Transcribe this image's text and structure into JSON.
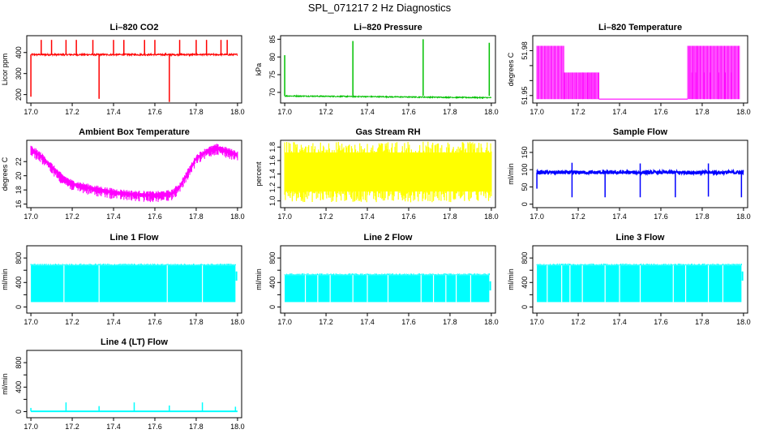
{
  "figure_title": "SPL_071217  2 Hz Diagnostics",
  "colors": {
    "co2": "#ff0000",
    "pressure": "#00c000",
    "magenta": "#ff00ff",
    "yellow": "#ffff00",
    "blue": "#0000ff",
    "cyan": "#00ffff",
    "axis": "#000000"
  },
  "chart_data": [
    {
      "id": "co2",
      "type": "line",
      "title": "Li–820 CO2",
      "xlabel": "",
      "ylabel": "Licor ppm",
      "color": "#ff0000",
      "xlim": [
        16.98,
        18.02
      ],
      "ylim": [
        160,
        480
      ],
      "xticks": [
        17.0,
        17.2,
        17.4,
        17.6,
        17.8,
        18.0
      ],
      "xtick_labels": [
        "17.0",
        "17.2",
        "17.4",
        "17.6",
        "17.8",
        "18.0"
      ],
      "yticks": [
        200,
        300,
        400
      ],
      "ytick_labels": [
        "200",
        "300",
        "400"
      ],
      "series": [
        {
          "name": "CO2",
          "baseline": 390,
          "noise": 4,
          "spikes": [
            [
              17.0,
              190
            ],
            [
              17.05,
              460
            ],
            [
              17.1,
              460
            ],
            [
              17.17,
              460
            ],
            [
              17.22,
              460
            ],
            [
              17.3,
              460
            ],
            [
              17.33,
              180
            ],
            [
              17.4,
              460
            ],
            [
              17.45,
              460
            ],
            [
              17.55,
              460
            ],
            [
              17.6,
              460
            ],
            [
              17.67,
              165
            ],
            [
              17.72,
              460
            ],
            [
              17.8,
              460
            ],
            [
              17.85,
              460
            ],
            [
              17.92,
              460
            ],
            [
              17.95,
              460
            ]
          ]
        }
      ]
    },
    {
      "id": "pressure",
      "type": "line",
      "title": "Li–820 Pressure",
      "xlabel": "",
      "ylabel": "kPa",
      "color": "#00c000",
      "xlim": [
        16.98,
        18.02
      ],
      "ylim": [
        67,
        86
      ],
      "xticks": [
        17.0,
        17.2,
        17.4,
        17.6,
        17.8,
        18.0
      ],
      "xtick_labels": [
        "17.0",
        "17.2",
        "17.4",
        "17.6",
        "17.8",
        "18.0"
      ],
      "yticks": [
        70,
        75,
        80,
        85
      ],
      "ytick_labels": [
        "70",
        "75",
        "80",
        "85"
      ],
      "series": [
        {
          "name": "Pressure",
          "start": 69.0,
          "end": 68.5,
          "noise": 0.15,
          "spikes": [
            [
              17.0,
              80.5
            ],
            [
              17.33,
              84.5
            ],
            [
              17.67,
              85.0
            ],
            [
              17.99,
              84.0
            ]
          ]
        }
      ]
    },
    {
      "id": "li820_temp",
      "type": "line",
      "title": "Li–820 Temperature",
      "xlabel": "",
      "ylabel": "degrees C",
      "color": "#ff00ff",
      "xlim": [
        16.98,
        18.02
      ],
      "ylim": [
        51.945,
        51.99
      ],
      "xticks": [
        17.0,
        17.2,
        17.4,
        17.6,
        17.8,
        18.0
      ],
      "xtick_labels": [
        "17.0",
        "17.2",
        "17.4",
        "17.6",
        "17.8",
        "18.0"
      ],
      "yticks": [
        51.95,
        51.96,
        51.97,
        51.98
      ],
      "ytick_labels": [
        "51.95",
        "",
        "",
        "51.98"
      ],
      "levels": [
        51.9476,
        51.9654,
        51.9832
      ],
      "segments": [
        [
          17.0,
          17.13,
          51.9476,
          51.9832
        ],
        [
          17.13,
          17.22,
          51.9476,
          51.9654
        ],
        [
          17.22,
          17.3,
          51.9476,
          51.9654
        ],
        [
          17.73,
          17.78,
          51.9476,
          51.9832
        ],
        [
          17.78,
          17.98,
          51.9476,
          51.9832
        ]
      ]
    },
    {
      "id": "ambient_temp",
      "type": "line",
      "title": "Ambient Box Temperature",
      "xlabel": "",
      "ylabel": "degrees C",
      "color": "#ff00ff",
      "xlim": [
        16.98,
        18.02
      ],
      "ylim": [
        15.5,
        25
      ],
      "xticks": [
        17.0,
        17.2,
        17.4,
        17.6,
        17.8,
        18.0
      ],
      "xtick_labels": [
        "17.0",
        "17.2",
        "17.4",
        "17.6",
        "17.8",
        "18.0"
      ],
      "yticks": [
        16,
        18,
        20,
        22
      ],
      "ytick_labels": [
        "16",
        "18",
        "20",
        "22"
      ],
      "series": [
        {
          "name": "Temperature",
          "points": [
            [
              17.0,
              23.8
            ],
            [
              17.05,
              22.8
            ],
            [
              17.1,
              21.3
            ],
            [
              17.15,
              19.8
            ],
            [
              17.2,
              18.9
            ],
            [
              17.3,
              18.2
            ],
            [
              17.4,
              17.7
            ],
            [
              17.5,
              17.4
            ],
            [
              17.6,
              17.3
            ],
            [
              17.68,
              17.5
            ],
            [
              17.72,
              18.5
            ],
            [
              17.76,
              20.5
            ],
            [
              17.8,
              22.5
            ],
            [
              17.85,
              23.5
            ],
            [
              17.9,
              24.0
            ],
            [
              17.95,
              23.5
            ],
            [
              18.0,
              23.0
            ]
          ],
          "noise": 0.8
        }
      ]
    },
    {
      "id": "gas_rh",
      "type": "line",
      "title": "Gas Stream RH",
      "xlabel": "",
      "ylabel": "percent",
      "color": "#ffff00",
      "xlim": [
        16.98,
        18.02
      ],
      "ylim": [
        0.9,
        1.9
      ],
      "xticks": [
        17.0,
        17.2,
        17.4,
        17.6,
        17.8,
        18.0
      ],
      "xtick_labels": [
        "17.0",
        "17.2",
        "17.4",
        "17.6",
        "17.8",
        "18.0"
      ],
      "yticks": [
        1.0,
        1.2,
        1.4,
        1.6,
        1.8
      ],
      "ytick_labels": [
        "1.0",
        "1.2",
        "1.4",
        "1.6",
        "1.8"
      ],
      "series": [
        {
          "name": "RH",
          "low": 0.98,
          "high": 1.88
        }
      ]
    },
    {
      "id": "sample_flow",
      "type": "line",
      "title": "Sample Flow",
      "xlabel": "",
      "ylabel": "ml/min",
      "color": "#0000ff",
      "xlim": [
        16.98,
        18.02
      ],
      "ylim": [
        -10,
        185
      ],
      "xticks": [
        17.0,
        17.2,
        17.4,
        17.6,
        17.8,
        18.0
      ],
      "xtick_labels": [
        "17.0",
        "17.2",
        "17.4",
        "17.6",
        "17.8",
        "18.0"
      ],
      "yticks": [
        0,
        50,
        100,
        150
      ],
      "ytick_labels": [
        "0",
        "50",
        "100",
        "150"
      ],
      "series": [
        {
          "name": "Flow",
          "baseline": 92,
          "noise": 5,
          "dips": [
            [
              17.0,
              45
            ],
            [
              17.17,
              20
            ],
            [
              17.33,
              20
            ],
            [
              17.5,
              20
            ],
            [
              17.67,
              20
            ],
            [
              17.83,
              22
            ],
            [
              17.99,
              20
            ]
          ],
          "peaks": [
            [
              17.17,
              120
            ],
            [
              17.5,
              118
            ],
            [
              17.83,
              118
            ]
          ]
        }
      ]
    },
    {
      "id": "line1",
      "type": "line",
      "title": "Line 1 Flow",
      "xlabel": "",
      "ylabel": "ml/min",
      "color": "#00ffff",
      "xlim": [
        16.98,
        18.02
      ],
      "ylim": [
        -100,
        1000
      ],
      "xticks": [
        17.0,
        17.2,
        17.4,
        17.6,
        17.8,
        18.0
      ],
      "xtick_labels": [
        "17.0",
        "17.2",
        "17.4",
        "17.6",
        "17.8",
        "18.0"
      ],
      "yticks": [
        0,
        400,
        800
      ],
      "ytick_labels": [
        "0",
        "400",
        "800"
      ],
      "yticks_minor": [
        200,
        600
      ],
      "series": [
        {
          "name": "Line 1",
          "low": 80,
          "high": 680,
          "gaps": [
            17.16,
            17.33,
            17.66,
            17.83
          ]
        }
      ]
    },
    {
      "id": "line2",
      "type": "line",
      "title": "Line 2 Flow",
      "xlabel": "",
      "ylabel": "ml/min",
      "color": "#00ffff",
      "xlim": [
        16.98,
        18.02
      ],
      "ylim": [
        -100,
        1000
      ],
      "xticks": [
        17.0,
        17.2,
        17.4,
        17.6,
        17.8,
        18.0
      ],
      "xtick_labels": [
        "17.0",
        "17.2",
        "17.4",
        "17.6",
        "17.8",
        "18.0"
      ],
      "yticks": [
        0,
        400,
        800
      ],
      "ytick_labels": [
        "0",
        "400",
        "800"
      ],
      "yticks_minor": [
        200,
        600
      ],
      "series": [
        {
          "name": "Line 2",
          "low": 80,
          "high": 520,
          "gaps": [
            17.1,
            17.16,
            17.22,
            17.33,
            17.4,
            17.5,
            17.66,
            17.72,
            17.78,
            17.83,
            17.9
          ]
        }
      ]
    },
    {
      "id": "line3",
      "type": "line",
      "title": "Line 3 Flow",
      "xlabel": "",
      "ylabel": "ml/min",
      "color": "#00ffff",
      "xlim": [
        16.98,
        18.02
      ],
      "ylim": [
        -100,
        1000
      ],
      "xticks": [
        17.0,
        17.2,
        17.4,
        17.6,
        17.8,
        18.0
      ],
      "xtick_labels": [
        "17.0",
        "17.2",
        "17.4",
        "17.6",
        "17.8",
        "18.0"
      ],
      "yticks": [
        0,
        400,
        800
      ],
      "ytick_labels": [
        "0",
        "400",
        "800"
      ],
      "yticks_minor": [
        200,
        600
      ],
      "series": [
        {
          "name": "Line 3",
          "low": 80,
          "high": 680,
          "gaps": [
            17.05,
            17.12,
            17.16,
            17.22,
            17.33,
            17.4,
            17.5,
            17.66,
            17.72,
            17.83,
            17.9
          ]
        }
      ]
    },
    {
      "id": "line4",
      "type": "line",
      "title": "Line 4 (LT) Flow",
      "xlabel": "",
      "ylabel": "ml/min",
      "color": "#00ffff",
      "xlim": [
        16.98,
        18.02
      ],
      "ylim": [
        -100,
        1000
      ],
      "xticks": [
        17.0,
        17.2,
        17.4,
        17.6,
        17.8,
        18.0
      ],
      "xtick_labels": [
        "17.0",
        "17.2",
        "17.4",
        "17.6",
        "17.8",
        "18.0"
      ],
      "yticks": [
        0,
        400,
        800
      ],
      "ytick_labels": [
        "0",
        "400",
        "800"
      ],
      "yticks_minor": [
        200,
        600
      ],
      "series": [
        {
          "name": "Line 4",
          "baseline": 5,
          "spikes": [
            [
              17.0,
              60
            ],
            [
              17.17,
              150
            ],
            [
              17.33,
              90
            ],
            [
              17.5,
              150
            ],
            [
              17.67,
              100
            ],
            [
              17.83,
              150
            ],
            [
              17.99,
              80
            ]
          ]
        }
      ]
    }
  ]
}
